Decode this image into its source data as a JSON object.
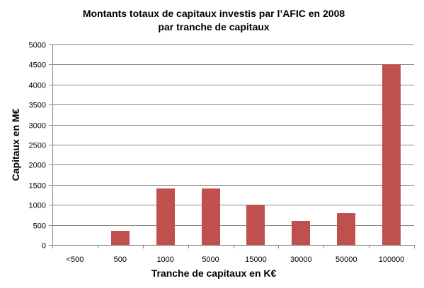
{
  "chart_data": {
    "type": "bar",
    "title": [
      "Montants totaux de capitaux investis par l’AFIC en 2008",
      "par tranche de capitaux"
    ],
    "xlabel": "Tranche de capitaux en K€",
    "ylabel": "Capitaux en M€",
    "categories": [
      "<500",
      "500",
      "1000",
      "5000",
      "15000",
      "30000",
      "50000",
      "100000"
    ],
    "values": [
      0,
      350,
      1400,
      1400,
      1000,
      600,
      800,
      4500
    ],
    "ylim": [
      0,
      5000
    ],
    "yticks": [
      0,
      500,
      1000,
      1500,
      2000,
      2500,
      3000,
      3500,
      4000,
      4500,
      5000
    ],
    "grid": true,
    "legend": "none",
    "bar_color": "#c0504d"
  }
}
